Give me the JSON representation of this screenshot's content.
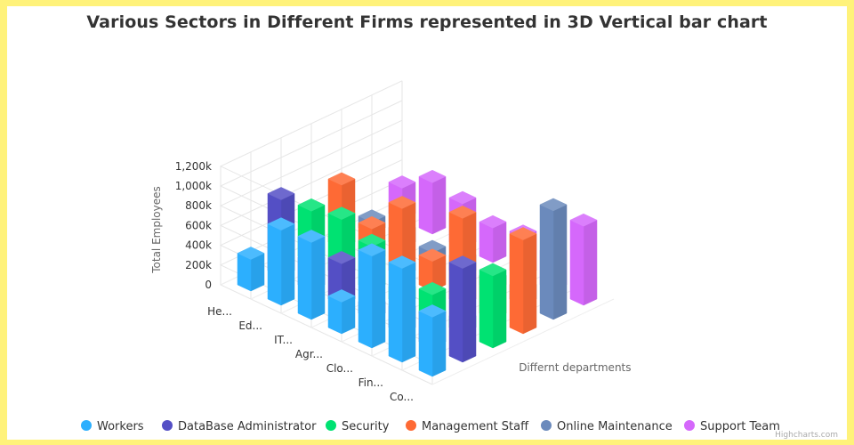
{
  "chart_data": {
    "type": "bar",
    "title": "Various Sectors in Different Firms represented in 3D Vertical bar chart",
    "xlabel": "Differnt departments",
    "ylabel": "Total Employees",
    "ylim": [
      0,
      1200000
    ],
    "yticks": [
      "0",
      "200k",
      "400k",
      "600k",
      "800k",
      "1,000k",
      "1,200k"
    ],
    "categories": [
      "He...",
      "Ed...",
      "IT...",
      "Agr...",
      "Clo...",
      "Fin...",
      "Co..."
    ],
    "legend_position": "bottom",
    "grid": true,
    "series": [
      {
        "name": "Workers",
        "color": "#2caffe",
        "values": [
          320000,
          760000,
          780000,
          320000,
          930000,
          950000,
          600000
        ]
      },
      {
        "name": "DataBase Administrator",
        "color": "#544fc5",
        "values": [
          780000,
          280000,
          420000,
          120000,
          220000,
          300000,
          950000
        ]
      },
      {
        "name": "Security",
        "color": "#00e272",
        "values": [
          520000,
          580000,
          450000,
          130000,
          250000,
          120000,
          730000
        ]
      },
      {
        "name": "Management Staff",
        "color": "#fe6a35",
        "values": [
          640000,
          340000,
          690000,
          300000,
          880000,
          380000,
          950000
        ]
      },
      {
        "name": "Online Maintenance",
        "color": "#6b8abc",
        "values": [
          120000,
          150000,
          100000,
          160000,
          100000,
          150000,
          1100000
        ]
      },
      {
        "name": "Support Team",
        "color": "#d568fb",
        "values": [
          320000,
          520000,
          450000,
          350000,
          400000,
          350000,
          800000
        ]
      }
    ]
  },
  "credit": "Highcharts.com"
}
